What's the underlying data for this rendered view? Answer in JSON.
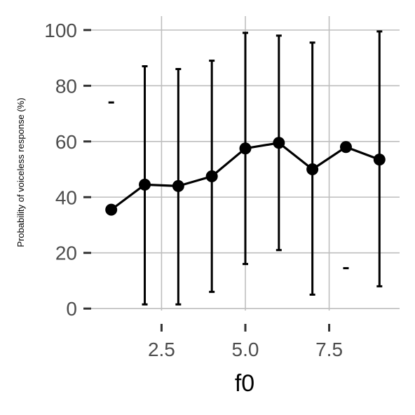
{
  "chart_data": {
    "type": "line",
    "xlabel": "f0",
    "ylabel": "Probability of voiceless response (%)",
    "xlim": [
      0.4,
      9.6
    ],
    "ylim": [
      -7,
      105
    ],
    "x_ticks": [
      {
        "value": 2.5,
        "label": "2.5"
      },
      {
        "value": 5.0,
        "label": "5.0"
      },
      {
        "value": 7.5,
        "label": "7.5"
      }
    ],
    "y_ticks": [
      {
        "value": 0,
        "label": "0"
      },
      {
        "value": 20,
        "label": "20"
      },
      {
        "value": 40,
        "label": "40"
      },
      {
        "value": 60,
        "label": "60"
      },
      {
        "value": 80,
        "label": "80"
      },
      {
        "value": 100,
        "label": "100"
      }
    ],
    "grid": true,
    "series": [
      {
        "points": [
          {
            "x": 1,
            "y": 35.5,
            "lower": 74,
            "upper": 74
          },
          {
            "x": 2,
            "y": 44.5,
            "lower": 1.5,
            "upper": 87
          },
          {
            "x": 3,
            "y": 44,
            "lower": 1.5,
            "upper": 86
          },
          {
            "x": 4,
            "y": 47.5,
            "lower": 6,
            "upper": 89
          },
          {
            "x": 5,
            "y": 57.5,
            "lower": 16,
            "upper": 99
          },
          {
            "x": 6,
            "y": 59.5,
            "lower": 21,
            "upper": 98
          },
          {
            "x": 7,
            "y": 50,
            "lower": 5,
            "upper": 95.5
          },
          {
            "x": 8,
            "y": 58,
            "lower": 14.5,
            "upper": 14.5
          },
          {
            "x": 9,
            "y": 53.5,
            "lower": 8,
            "upper": 99.5
          }
        ]
      }
    ],
    "colors": {
      "line": "#000000",
      "grid": "#bebebe",
      "tick_text": "#4d4d4d",
      "background": "#ffffff"
    }
  }
}
